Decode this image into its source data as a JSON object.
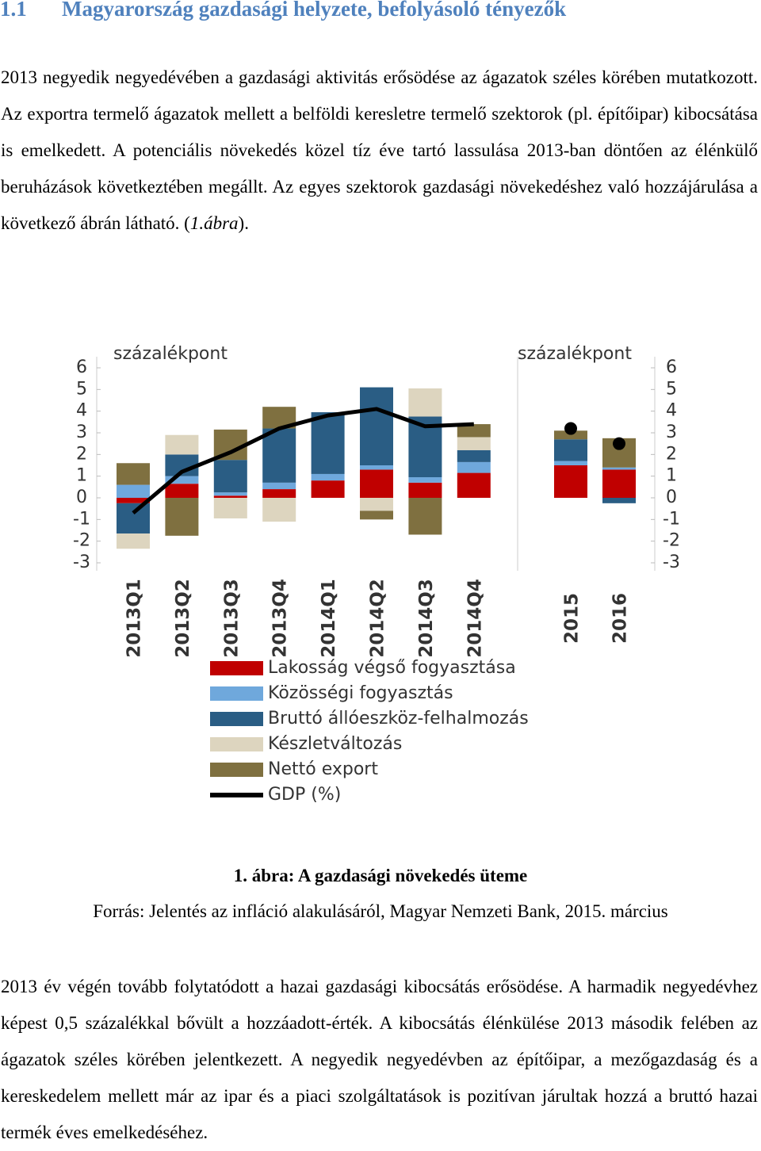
{
  "heading": {
    "number": "1.1",
    "title": "Magyarország gazdasági helyzete, befolyásoló tényezők"
  },
  "paragraphs": [
    {
      "runs": [
        "2013 negyedik negyedévében a gazdasági aktivitás erősödése az ágazatok széles körében mutatkozott. Az exportra termelő ágazatok mellett a belföldi keresletre termelő szektorok (pl. építőipar) kibocsátása is emelkedett. A potenciális növekedés közel tíz éve tartó lassulása 2013-ban döntően az élénkülő beruházások következtében megállt. Az egyes szektorok gazdasági növekedéshez való hozzájárulása a következő ábrán látható. (",
        "1.ábra",
        ")."
      ]
    },
    {
      "runs": [
        "2013 év végén tovább folytatódott a hazai gazdasági kibocsátás erősödése. A harmadik negyedévhez képest 0,5 százalékkal bővült a hozzáadott-érték. A kibocsátás élénkülése 2013 második felében az ágazatok széles körében jelentkezett. A negyedik negyedévben az építőipar, a mezőgazdaság és a kereskedelem mellett már az ipar és a piaci szolgáltatások is pozitívan járultak hozzá a bruttó hazai termék éves emelkedéséhez."
      ]
    }
  ],
  "chart_data": {
    "type": "bar",
    "stacked": true,
    "y_label": "százalékpont",
    "y2_label": "százalékpont",
    "categories": [
      "2013Q1",
      "2013Q2",
      "2013Q3",
      "2013Q4",
      "2014Q1",
      "2014Q2",
      "2014Q3",
      "2014Q4",
      "2015",
      "2016"
    ],
    "series": [
      {
        "name": "Lakosság végső fogyasztása",
        "color": "#c00000",
        "values": [
          -0.25,
          0.65,
          0.1,
          0.4,
          0.8,
          1.3,
          0.7,
          1.15,
          1.5,
          1.3
        ]
      },
      {
        "name": "Közösségi fogyasztás",
        "color": "#6fa8dc",
        "values": [
          0.6,
          0.35,
          0.15,
          0.3,
          0.3,
          0.2,
          0.25,
          0.5,
          0.2,
          0.1
        ]
      },
      {
        "name": "Bruttó állóeszköz-felhalmozás",
        "color": "#2a5d84",
        "values": [
          -1.4,
          1.0,
          1.5,
          2.5,
          2.85,
          3.6,
          2.8,
          0.55,
          1.0,
          -0.25
        ]
      },
      {
        "name": "Készletváltozás",
        "color": "#ddd5bf",
        "values": [
          -0.7,
          0.9,
          -0.95,
          -1.1,
          0,
          -0.6,
          1.3,
          0.6,
          0,
          0
        ]
      },
      {
        "name": "Nettó export",
        "color": "#7f7040",
        "values": [
          1.0,
          -1.75,
          1.4,
          1.0,
          0,
          -0.4,
          -1.7,
          0.6,
          0.4,
          1.35
        ]
      },
      {
        "name": "GDP (%)",
        "color": "#000000",
        "type": "line",
        "values": [
          -0.7,
          1.2,
          2.1,
          3.2,
          3.8,
          4.1,
          3.3,
          3.4,
          3.2,
          2.5
        ]
      }
    ],
    "ylim": [
      -3,
      6
    ],
    "yticks": [
      -3,
      -2,
      -1,
      0,
      1,
      2,
      3,
      4,
      5,
      6
    ],
    "y2lim": [
      -3,
      6
    ],
    "y2ticks": [
      -3,
      -2,
      -1,
      0,
      1,
      2,
      3,
      4,
      5,
      6
    ],
    "grid": false,
    "legend": "bottom"
  },
  "caption": "1. ábra: A gazdasági növekedés üteme",
  "source": "Forrás: Jelentés az infláció alakulásáról, Magyar Nemzeti Bank, 2015. március"
}
